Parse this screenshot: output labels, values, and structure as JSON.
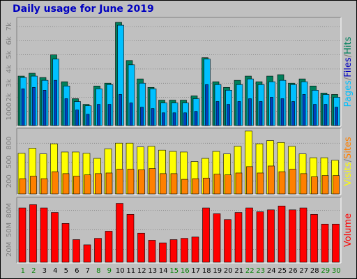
{
  "chart_data": {
    "title": "Daily usage for June 2019",
    "type": "bar",
    "x": [
      "1",
      "2",
      "3",
      "4",
      "5",
      "6",
      "7",
      "8",
      "9",
      "10",
      "11",
      "12",
      "13",
      "14",
      "15",
      "16",
      "17",
      "18",
      "19",
      "20",
      "21",
      "22",
      "23",
      "24",
      "25",
      "26",
      "27",
      "28",
      "29",
      "30"
    ],
    "weekend_days": [
      "1",
      "2",
      "8",
      "9",
      "15",
      "16",
      "22",
      "23",
      "29",
      "30"
    ],
    "colors": {
      "background": "#c0c0c0",
      "title": "#0000c0",
      "hits": "#00805c",
      "files": "#00c0ff",
      "pages": "#0040c0",
      "visits": "#ffff00",
      "sites": "#ff8000",
      "volume": "#ff0000",
      "weekday_label": "#000000",
      "weekend_label": "#008000"
    },
    "panels": [
      {
        "id": "hits-panel",
        "ylabel_parts": [
          {
            "text": "Pages",
            "color": "#00c0ff"
          },
          {
            "text": "/",
            "color": "#808080"
          },
          {
            "text": "Files",
            "color": "#0000c0"
          },
          {
            "text": "/",
            "color": "#808080"
          },
          {
            "text": "Hits",
            "color": "#00805c"
          }
        ],
        "y_ticks": [
          "1000",
          "2k",
          "3k",
          "4k",
          "5k",
          "6k",
          "7k"
        ],
        "y_tick_values": [
          1000,
          2000,
          3000,
          4000,
          5000,
          6000,
          7000
        ],
        "ylim": [
          0,
          7500
        ],
        "series": [
          {
            "name": "Hits",
            "color": "#00805c",
            "values": [
              3500,
              3700,
              3400,
              5000,
              3100,
              1900,
              1500,
              2800,
              3000,
              7300,
              4600,
              3300,
              2700,
              1800,
              1800,
              1800,
              2100,
              4800,
              3100,
              2700,
              3200,
              3500,
              3100,
              3500,
              3600,
              3000,
              3300,
              2800,
              2300,
              2200
            ]
          },
          {
            "name": "Files",
            "color": "#00c0ff",
            "values": [
              3400,
              3500,
              3200,
              4700,
              2800,
              1700,
              1400,
              2600,
              2900,
              7100,
              4300,
              3000,
              2600,
              1600,
              1600,
              1600,
              1900,
              4700,
              2900,
              2500,
              2900,
              3300,
              2900,
              3100,
              3200,
              2900,
              3100,
              2500,
              2200,
              2000
            ]
          },
          {
            "name": "Pages",
            "color": "#0040c0",
            "values": [
              2600,
              2700,
              2500,
              3200,
              1900,
              1100,
              800,
              1500,
              1500,
              2200,
              1600,
              1300,
              1200,
              900,
              900,
              900,
              1000,
              2900,
              1700,
              1500,
              1700,
              1900,
              1700,
              2000,
              1900,
              1700,
              2200,
              1500,
              1500,
              1300
            ]
          }
        ]
      },
      {
        "id": "visits-panel",
        "ylabel_parts": [
          {
            "text": "Visits",
            "color": "#ffff00"
          },
          {
            "text": "/",
            "color": "#808080"
          },
          {
            "text": "Sites",
            "color": "#ff8000"
          }
        ],
        "y_ticks": [
          "200",
          "500",
          "800"
        ],
        "y_tick_values": [
          200,
          500,
          800
        ],
        "ylim": [
          0,
          1000
        ],
        "series": [
          {
            "name": "Visits",
            "color": "#ffff00",
            "values": [
              640,
              720,
              630,
              790,
              660,
              660,
              640,
              560,
              710,
              800,
              800,
              740,
              750,
              690,
              670,
              660,
              510,
              560,
              670,
              630,
              750,
              990,
              790,
              840,
              810,
              750,
              630,
              570,
              570,
              530
            ]
          },
          {
            "name": "Sites",
            "color": "#ff8000",
            "values": [
              240,
              280,
              240,
              350,
              320,
              280,
              300,
              320,
              330,
              390,
              390,
              380,
              400,
              320,
              320,
              230,
              240,
              250,
              310,
              300,
              330,
              430,
              330,
              440,
              350,
              390,
              320,
              270,
              290,
              290
            ]
          }
        ]
      },
      {
        "id": "volume-panel",
        "ylabel_parts": [
          {
            "text": "Volume",
            "color": "#ff0000"
          }
        ],
        "y_ticks": [
          "20M",
          "50M",
          "80M"
        ],
        "y_tick_values": [
          20,
          50,
          80
        ],
        "ylim": [
          0,
          97
        ],
        "series": [
          {
            "name": "Volume",
            "color": "#ff0000",
            "values": [
              84,
              89,
              84,
              77,
              60,
              35,
              27,
              37,
              48,
              91,
              74,
              45,
              34,
              30,
              35,
              37,
              39,
              84,
              75,
              66,
              77,
              84,
              78,
              81,
              87,
              81,
              84,
              74,
              59,
              59
            ]
          }
        ]
      }
    ]
  }
}
